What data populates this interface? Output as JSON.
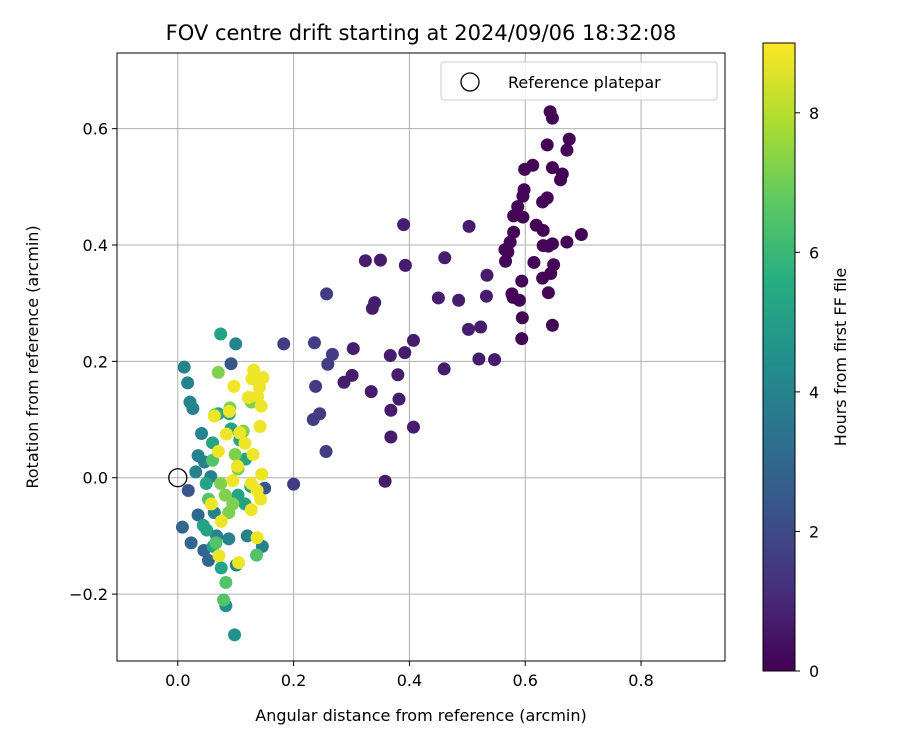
{
  "chart_data": {
    "type": "scatter",
    "title": "FOV centre drift starting at 2024/09/06 18:32:08",
    "xlabel": "Angular distance from reference (arcmin)",
    "ylabel": "Rotation from reference (arcmin)",
    "xlim": [
      -0.105,
      0.945
    ],
    "ylim": [
      -0.315,
      0.73
    ],
    "xticks": [
      0.0,
      0.2,
      0.4,
      0.6,
      0.8
    ],
    "xtick_labels": [
      "0.0",
      "0.2",
      "0.4",
      "0.6",
      "0.8"
    ],
    "yticks": [
      -0.2,
      0.0,
      0.2,
      0.4,
      0.6
    ],
    "ytick_labels": [
      "−0.2",
      "0.0",
      "0.2",
      "0.4",
      "0.6"
    ],
    "grid": true,
    "legend": {
      "position": "top-right",
      "entries": [
        "Reference platepar"
      ]
    },
    "reference_point": {
      "x": 0.0,
      "y": 0.0
    },
    "colorbar": {
      "label": "Hours from first FF file",
      "colormap": "viridis",
      "range": [
        0,
        9
      ],
      "ticks": [
        0,
        2,
        4,
        6,
        8
      ],
      "tick_labels": [
        "0",
        "2",
        "4",
        "6",
        "8"
      ]
    },
    "points": [
      {
        "x": 0.643,
        "y": 0.629,
        "h": 0.1
      },
      {
        "x": 0.647,
        "y": 0.618,
        "h": 0.1
      },
      {
        "x": 0.676,
        "y": 0.582,
        "h": 0.1
      },
      {
        "x": 0.638,
        "y": 0.572,
        "h": 0.1
      },
      {
        "x": 0.672,
        "y": 0.563,
        "h": 0.1
      },
      {
        "x": 0.613,
        "y": 0.537,
        "h": 0.1
      },
      {
        "x": 0.647,
        "y": 0.533,
        "h": 0.1
      },
      {
        "x": 0.599,
        "y": 0.53,
        "h": 0.1
      },
      {
        "x": 0.664,
        "y": 0.522,
        "h": 0.1
      },
      {
        "x": 0.661,
        "y": 0.512,
        "h": 0.1
      },
      {
        "x": 0.598,
        "y": 0.495,
        "h": 0.1
      },
      {
        "x": 0.596,
        "y": 0.484,
        "h": 0.1
      },
      {
        "x": 0.638,
        "y": 0.481,
        "h": 0.1
      },
      {
        "x": 0.63,
        "y": 0.474,
        "h": 0.1
      },
      {
        "x": 0.587,
        "y": 0.466,
        "h": 0.1
      },
      {
        "x": 0.58,
        "y": 0.45,
        "h": 0.1
      },
      {
        "x": 0.596,
        "y": 0.448,
        "h": 0.1
      },
      {
        "x": 0.619,
        "y": 0.434,
        "h": 0.1
      },
      {
        "x": 0.631,
        "y": 0.425,
        "h": 0.1
      },
      {
        "x": 0.58,
        "y": 0.422,
        "h": 0.1
      },
      {
        "x": 0.697,
        "y": 0.418,
        "h": 0.1
      },
      {
        "x": 0.574,
        "y": 0.405,
        "h": 0.1
      },
      {
        "x": 0.672,
        "y": 0.405,
        "h": 0.1
      },
      {
        "x": 0.647,
        "y": 0.402,
        "h": 0.1
      },
      {
        "x": 0.631,
        "y": 0.399,
        "h": 0.1
      },
      {
        "x": 0.64,
        "y": 0.398,
        "h": 0.1
      },
      {
        "x": 0.565,
        "y": 0.392,
        "h": 0.1
      },
      {
        "x": 0.57,
        "y": 0.388,
        "h": 0.1
      },
      {
        "x": 0.615,
        "y": 0.37,
        "h": 0.1
      },
      {
        "x": 0.649,
        "y": 0.366,
        "h": 0.1
      },
      {
        "x": 0.566,
        "y": 0.372,
        "h": 0.1
      },
      {
        "x": 0.644,
        "y": 0.351,
        "h": 0.1
      },
      {
        "x": 0.63,
        "y": 0.343,
        "h": 0.1
      },
      {
        "x": 0.594,
        "y": 0.338,
        "h": 0.1
      },
      {
        "x": 0.579,
        "y": 0.31,
        "h": 0.1
      },
      {
        "x": 0.59,
        "y": 0.305,
        "h": 0.1
      },
      {
        "x": 0.64,
        "y": 0.318,
        "h": 0.1
      },
      {
        "x": 0.577,
        "y": 0.316,
        "h": 0.1
      },
      {
        "x": 0.595,
        "y": 0.275,
        "h": 0.1
      },
      {
        "x": 0.647,
        "y": 0.262,
        "h": 0.1
      },
      {
        "x": 0.594,
        "y": 0.239,
        "h": 0.1
      },
      {
        "x": 0.39,
        "y": 0.435,
        "h": 0.7
      },
      {
        "x": 0.503,
        "y": 0.432,
        "h": 0.7
      },
      {
        "x": 0.461,
        "y": 0.378,
        "h": 0.7
      },
      {
        "x": 0.324,
        "y": 0.373,
        "h": 0.7
      },
      {
        "x": 0.35,
        "y": 0.374,
        "h": 0.7
      },
      {
        "x": 0.393,
        "y": 0.365,
        "h": 0.7
      },
      {
        "x": 0.534,
        "y": 0.348,
        "h": 0.7
      },
      {
        "x": 0.533,
        "y": 0.312,
        "h": 0.7
      },
      {
        "x": 0.45,
        "y": 0.309,
        "h": 0.7
      },
      {
        "x": 0.485,
        "y": 0.305,
        "h": 0.7
      },
      {
        "x": 0.34,
        "y": 0.301,
        "h": 0.7
      },
      {
        "x": 0.336,
        "y": 0.291,
        "h": 0.7
      },
      {
        "x": 0.502,
        "y": 0.255,
        "h": 0.7
      },
      {
        "x": 0.523,
        "y": 0.259,
        "h": 0.7
      },
      {
        "x": 0.407,
        "y": 0.236,
        "h": 0.7
      },
      {
        "x": 0.303,
        "y": 0.222,
        "h": 0.7
      },
      {
        "x": 0.367,
        "y": 0.21,
        "h": 0.7
      },
      {
        "x": 0.392,
        "y": 0.215,
        "h": 0.7
      },
      {
        "x": 0.52,
        "y": 0.204,
        "h": 0.7
      },
      {
        "x": 0.547,
        "y": 0.203,
        "h": 0.7
      },
      {
        "x": 0.46,
        "y": 0.187,
        "h": 0.7
      },
      {
        "x": 0.38,
        "y": 0.177,
        "h": 0.7
      },
      {
        "x": 0.301,
        "y": 0.176,
        "h": 0.7
      },
      {
        "x": 0.287,
        "y": 0.164,
        "h": 0.7
      },
      {
        "x": 0.334,
        "y": 0.148,
        "h": 0.7
      },
      {
        "x": 0.382,
        "y": 0.135,
        "h": 0.7
      },
      {
        "x": 0.368,
        "y": 0.116,
        "h": 0.7
      },
      {
        "x": 0.407,
        "y": 0.087,
        "h": 0.7
      },
      {
        "x": 0.368,
        "y": 0.07,
        "h": 0.7
      },
      {
        "x": 0.358,
        "y": -0.006,
        "h": 0.7
      },
      {
        "x": 0.257,
        "y": 0.316,
        "h": 1.6
      },
      {
        "x": 0.183,
        "y": 0.23,
        "h": 1.6
      },
      {
        "x": 0.236,
        "y": 0.232,
        "h": 1.6
      },
      {
        "x": 0.267,
        "y": 0.212,
        "h": 1.6
      },
      {
        "x": 0.259,
        "y": 0.195,
        "h": 1.6
      },
      {
        "x": 0.238,
        "y": 0.157,
        "h": 1.6
      },
      {
        "x": 0.245,
        "y": 0.11,
        "h": 1.6
      },
      {
        "x": 0.234,
        "y": 0.1,
        "h": 1.6
      },
      {
        "x": 0.256,
        "y": 0.045,
        "h": 1.6
      },
      {
        "x": 0.2,
        "y": -0.011,
        "h": 1.6
      },
      {
        "x": 0.092,
        "y": 0.196,
        "h": 2.4
      },
      {
        "x": 0.15,
        "y": -0.018,
        "h": 2.4
      },
      {
        "x": 0.018,
        "y": -0.022,
        "h": 2.4
      },
      {
        "x": 0.023,
        "y": -0.112,
        "h": 3.0
      },
      {
        "x": 0.008,
        "y": -0.085,
        "h": 3.0
      },
      {
        "x": 0.035,
        "y": -0.064,
        "h": 3.0
      },
      {
        "x": 0.045,
        "y": -0.125,
        "h": 3.0
      },
      {
        "x": 0.053,
        "y": -0.142,
        "h": 3.0
      },
      {
        "x": 0.1,
        "y": 0.23,
        "h": 4.0
      },
      {
        "x": 0.011,
        "y": 0.19,
        "h": 4.0
      },
      {
        "x": 0.017,
        "y": 0.163,
        "h": 4.0
      },
      {
        "x": 0.021,
        "y": 0.13,
        "h": 4.0
      },
      {
        "x": 0.026,
        "y": 0.119,
        "h": 4.0
      },
      {
        "x": 0.041,
        "y": 0.076,
        "h": 4.0
      },
      {
        "x": 0.035,
        "y": 0.038,
        "h": 4.0
      },
      {
        "x": 0.046,
        "y": 0.027,
        "h": 4.0
      },
      {
        "x": 0.031,
        "y": 0.01,
        "h": 4.0
      },
      {
        "x": 0.057,
        "y": 0.002,
        "h": 4.0
      },
      {
        "x": 0.063,
        "y": -0.06,
        "h": 4.0
      },
      {
        "x": 0.067,
        "y": -0.1,
        "h": 4.0
      },
      {
        "x": 0.088,
        "y": -0.105,
        "h": 4.0
      },
      {
        "x": 0.101,
        "y": -0.15,
        "h": 4.0
      },
      {
        "x": 0.12,
        "y": -0.1,
        "h": 4.0
      },
      {
        "x": 0.146,
        "y": -0.118,
        "h": 4.0
      },
      {
        "x": 0.098,
        "y": -0.27,
        "h": 4.5
      },
      {
        "x": 0.083,
        "y": -0.22,
        "h": 4.5
      },
      {
        "x": 0.074,
        "y": 0.247,
        "h": 5.2
      },
      {
        "x": 0.07,
        "y": 0.11,
        "h": 5.2
      },
      {
        "x": 0.06,
        "y": 0.06,
        "h": 5.2
      },
      {
        "x": 0.049,
        "y": -0.01,
        "h": 5.2
      },
      {
        "x": 0.044,
        "y": -0.082,
        "h": 5.2
      },
      {
        "x": 0.05,
        "y": -0.09,
        "h": 5.2
      },
      {
        "x": 0.061,
        "y": -0.118,
        "h": 5.2
      },
      {
        "x": 0.075,
        "y": -0.155,
        "h": 5.2
      },
      {
        "x": 0.104,
        "y": -0.03,
        "h": 5.2
      },
      {
        "x": 0.116,
        "y": -0.045,
        "h": 5.2
      },
      {
        "x": 0.126,
        "y": -0.015,
        "h": 5.2
      },
      {
        "x": 0.092,
        "y": 0.084,
        "h": 5.2
      },
      {
        "x": 0.107,
        "y": 0.065,
        "h": 5.2
      },
      {
        "x": 0.089,
        "y": 0.11,
        "h": 5.2
      },
      {
        "x": 0.117,
        "y": 0.032,
        "h": 5.2
      },
      {
        "x": 0.136,
        "y": -0.133,
        "h": 6.5
      },
      {
        "x": 0.083,
        "y": -0.18,
        "h": 6.5
      },
      {
        "x": 0.079,
        "y": -0.21,
        "h": 6.5
      },
      {
        "x": 0.064,
        "y": 0.108,
        "h": 6.5
      },
      {
        "x": 0.066,
        "y": -0.112,
        "h": 6.5
      },
      {
        "x": 0.053,
        "y": -0.037,
        "h": 6.5
      },
      {
        "x": 0.06,
        "y": 0.03,
        "h": 6.5
      },
      {
        "x": 0.07,
        "y": 0.181,
        "h": 7.2
      },
      {
        "x": 0.09,
        "y": 0.12,
        "h": 7.2
      },
      {
        "x": 0.104,
        "y": 0.015,
        "h": 7.2
      },
      {
        "x": 0.088,
        "y": -0.06,
        "h": 7.2
      },
      {
        "x": 0.127,
        "y": 0.13,
        "h": 7.2
      },
      {
        "x": 0.074,
        "y": -0.01,
        "h": 7.2
      },
      {
        "x": 0.113,
        "y": 0.08,
        "h": 7.2
      },
      {
        "x": 0.099,
        "y": 0.04,
        "h": 7.2
      },
      {
        "x": 0.082,
        "y": -0.03,
        "h": 7.2
      },
      {
        "x": 0.095,
        "y": -0.045,
        "h": 7.2
      },
      {
        "x": 0.131,
        "y": 0.185,
        "h": 8.8
      },
      {
        "x": 0.128,
        "y": 0.17,
        "h": 8.8
      },
      {
        "x": 0.147,
        "y": 0.172,
        "h": 8.8
      },
      {
        "x": 0.141,
        "y": 0.156,
        "h": 8.8
      },
      {
        "x": 0.097,
        "y": 0.157,
        "h": 8.8
      },
      {
        "x": 0.138,
        "y": 0.14,
        "h": 8.8
      },
      {
        "x": 0.144,
        "y": 0.123,
        "h": 8.8
      },
      {
        "x": 0.122,
        "y": 0.138,
        "h": 8.8
      },
      {
        "x": 0.089,
        "y": 0.114,
        "h": 8.8
      },
      {
        "x": 0.063,
        "y": 0.106,
        "h": 8.8
      },
      {
        "x": 0.142,
        "y": 0.088,
        "h": 8.8
      },
      {
        "x": 0.107,
        "y": 0.077,
        "h": 8.8
      },
      {
        "x": 0.116,
        "y": 0.059,
        "h": 8.8
      },
      {
        "x": 0.07,
        "y": 0.045,
        "h": 8.8
      },
      {
        "x": 0.13,
        "y": 0.04,
        "h": 8.8
      },
      {
        "x": 0.103,
        "y": 0.02,
        "h": 8.8
      },
      {
        "x": 0.145,
        "y": 0.006,
        "h": 8.8
      },
      {
        "x": 0.127,
        "y": -0.01,
        "h": 8.8
      },
      {
        "x": 0.137,
        "y": -0.022,
        "h": 8.8
      },
      {
        "x": 0.143,
        "y": -0.037,
        "h": 8.8
      },
      {
        "x": 0.058,
        "y": -0.045,
        "h": 8.8
      },
      {
        "x": 0.127,
        "y": -0.055,
        "h": 8.8
      },
      {
        "x": 0.075,
        "y": -0.075,
        "h": 8.8
      },
      {
        "x": 0.137,
        "y": -0.103,
        "h": 8.8
      },
      {
        "x": 0.071,
        "y": -0.134,
        "h": 8.8
      },
      {
        "x": 0.105,
        "y": -0.146,
        "h": 8.8
      },
      {
        "x": 0.084,
        "y": 0.075,
        "h": 8.8
      },
      {
        "x": 0.095,
        "y": -0.005,
        "h": 8.8
      }
    ]
  }
}
